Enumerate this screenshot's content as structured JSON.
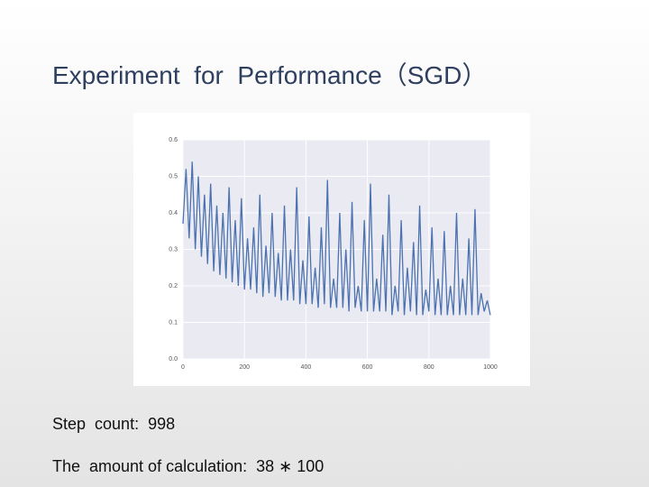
{
  "slide_title": "Experiment  for  Performance（SGD）",
  "text_lines": [
    "Step  count:  998",
    "The  amount of calculation:  38 ∗ 100"
  ],
  "chart_data": {
    "type": "line",
    "color": "#4c72b0",
    "grid": true,
    "xlim": [
      0,
      1000
    ],
    "xticks": [
      0,
      200,
      400,
      600,
      800,
      1000
    ],
    "ylim": [
      0,
      0.6
    ],
    "yticks": [
      {
        "value": 0,
        "label": "0.0"
      },
      0.1,
      0.2,
      0.3,
      0.4,
      0.5,
      0.6
    ],
    "x": [
      0,
      10,
      20,
      30,
      40,
      50,
      60,
      70,
      80,
      90,
      100,
      110,
      120,
      130,
      140,
      150,
      160,
      170,
      180,
      190,
      200,
      210,
      220,
      230,
      240,
      250,
      260,
      270,
      280,
      290,
      300,
      310,
      320,
      330,
      340,
      350,
      360,
      370,
      380,
      390,
      400,
      410,
      420,
      430,
      440,
      450,
      460,
      470,
      480,
      490,
      500,
      510,
      520,
      530,
      540,
      550,
      560,
      570,
      580,
      590,
      600,
      610,
      620,
      630,
      640,
      650,
      660,
      670,
      680,
      690,
      700,
      710,
      720,
      730,
      740,
      750,
      760,
      770,
      780,
      790,
      800,
      810,
      820,
      830,
      840,
      850,
      860,
      870,
      880,
      890,
      900,
      910,
      920,
      930,
      940,
      950,
      960,
      970,
      980,
      990,
      1000
    ],
    "values": [
      0.37,
      0.52,
      0.33,
      0.54,
      0.3,
      0.5,
      0.28,
      0.45,
      0.26,
      0.48,
      0.24,
      0.42,
      0.23,
      0.4,
      0.22,
      0.47,
      0.21,
      0.38,
      0.2,
      0.44,
      0.19,
      0.33,
      0.19,
      0.36,
      0.18,
      0.45,
      0.17,
      0.31,
      0.18,
      0.4,
      0.17,
      0.29,
      0.16,
      0.42,
      0.16,
      0.3,
      0.16,
      0.47,
      0.15,
      0.27,
      0.15,
      0.39,
      0.15,
      0.25,
      0.14,
      0.36,
      0.15,
      0.49,
      0.14,
      0.22,
      0.14,
      0.4,
      0.14,
      0.3,
      0.13,
      0.43,
      0.14,
      0.2,
      0.13,
      0.38,
      0.13,
      0.48,
      0.13,
      0.22,
      0.13,
      0.34,
      0.13,
      0.45,
      0.12,
      0.2,
      0.13,
      0.38,
      0.12,
      0.25,
      0.13,
      0.32,
      0.12,
      0.42,
      0.12,
      0.19,
      0.13,
      0.36,
      0.12,
      0.22,
      0.12,
      0.35,
      0.12,
      0.2,
      0.12,
      0.4,
      0.12,
      0.22,
      0.12,
      0.33,
      0.12,
      0.41,
      0.12,
      0.18,
      0.13,
      0.16,
      0.12
    ]
  }
}
